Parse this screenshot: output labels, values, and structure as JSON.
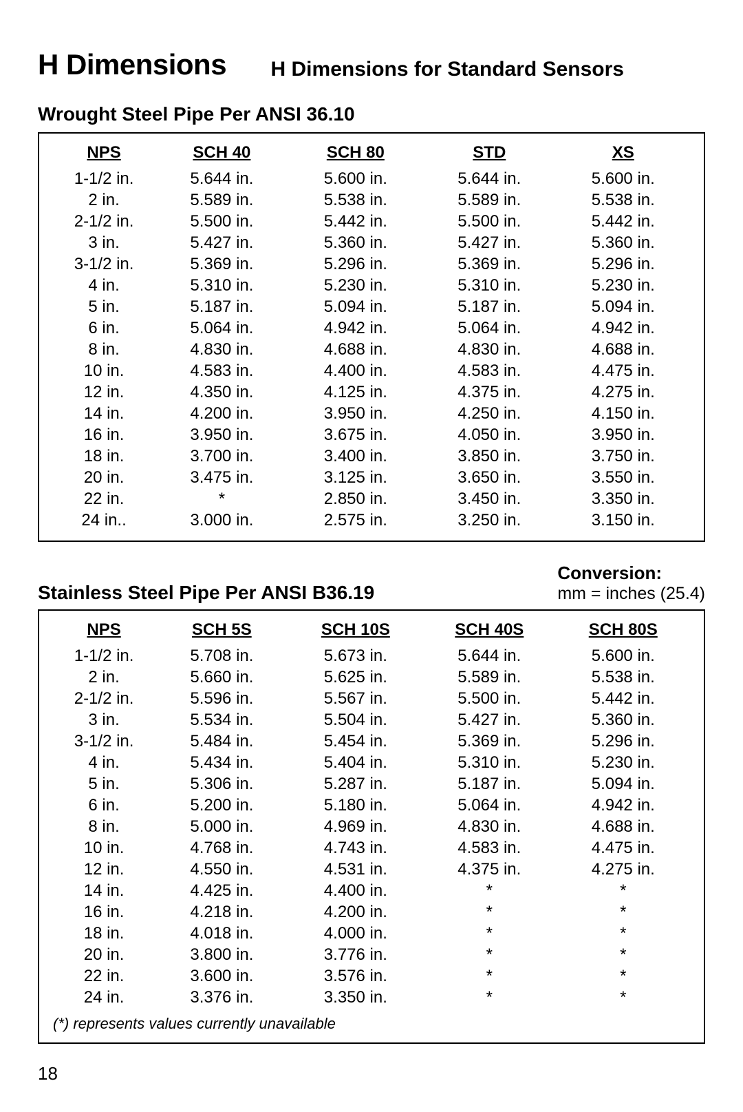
{
  "header": {
    "title_main": "H Dimensions",
    "title_sub": "H Dimensions for Standard Sensors"
  },
  "table1": {
    "section_title": "Wrought Steel Pipe Per ANSI 36.10",
    "columns": [
      "NPS",
      "SCH 40",
      "SCH 80",
      "STD",
      "XS"
    ],
    "rows": [
      [
        "1-1/2 in.",
        "5.644 in.",
        "5.600 in.",
        "5.644 in.",
        "5.600 in."
      ],
      [
        "2 in.",
        "5.589 in.",
        "5.538 in.",
        "5.589 in.",
        "5.538 in."
      ],
      [
        "2-1/2 in.",
        "5.500 in.",
        "5.442 in.",
        "5.500 in.",
        "5.442 in."
      ],
      [
        "3 in.",
        "5.427 in.",
        "5.360 in.",
        "5.427 in.",
        "5.360 in."
      ],
      [
        "3-1/2 in.",
        "5.369 in.",
        "5.296 in.",
        "5.369 in.",
        "5.296 in."
      ],
      [
        "4 in.",
        "5.310 in.",
        "5.230 in.",
        "5.310 in.",
        "5.230 in."
      ],
      [
        "5 in.",
        "5.187 in.",
        "5.094 in.",
        "5.187 in.",
        "5.094 in."
      ],
      [
        "6 in.",
        "5.064 in.",
        "4.942 in.",
        "5.064 in.",
        "4.942 in."
      ],
      [
        "8 in.",
        "4.830 in.",
        "4.688 in.",
        "4.830 in.",
        "4.688 in."
      ],
      [
        "10 in.",
        "4.583 in.",
        "4.400 in.",
        "4.583 in.",
        "4.475 in."
      ],
      [
        "12 in.",
        "4.350 in.",
        "4.125 in.",
        "4.375 in.",
        "4.275 in."
      ],
      [
        "14 in.",
        "4.200 in.",
        "3.950 in.",
        "4.250 in.",
        "4.150 in."
      ],
      [
        "16 in.",
        "3.950 in.",
        "3.675 in.",
        "4.050 in.",
        "3.950 in."
      ],
      [
        "18 in.",
        "3.700 in.",
        "3.400 in.",
        "3.850 in.",
        "3.750 in."
      ],
      [
        "20 in.",
        "3.475 in.",
        "3.125 in.",
        "3.650 in.",
        "3.550 in."
      ],
      [
        "22 in.",
        "*",
        "2.850 in.",
        "3.450 in.",
        "3.350 in."
      ],
      [
        "24 in..",
        "3.000 in.",
        "2.575 in.",
        "3.250 in.",
        "3.150 in."
      ]
    ]
  },
  "conversion": {
    "label": "Conversion:",
    "text": "mm = inches (25.4)"
  },
  "table2": {
    "section_title": "Stainless Steel Pipe Per ANSI B36.19",
    "columns": [
      "NPS",
      "SCH 5S",
      "SCH 10S",
      "SCH 40S",
      "SCH 80S"
    ],
    "rows": [
      [
        "1-1/2 in.",
        "5.708 in.",
        "5.673 in.",
        "5.644 in.",
        "5.600 in."
      ],
      [
        "2 in.",
        "5.660 in.",
        "5.625 in.",
        "5.589 in.",
        "5.538 in."
      ],
      [
        "2-1/2 in.",
        "5.596 in.",
        "5.567 in.",
        "5.500 in.",
        "5.442 in."
      ],
      [
        "3 in.",
        "5.534 in.",
        "5.504 in.",
        "5.427 in.",
        "5.360 in."
      ],
      [
        "3-1/2 in.",
        "5.484 in.",
        "5.454 in.",
        "5.369 in.",
        "5.296 in."
      ],
      [
        "4 in.",
        "5.434 in.",
        "5.404 in.",
        "5.310 in.",
        "5.230 in."
      ],
      [
        "5 in.",
        "5.306 in.",
        "5.287 in.",
        "5.187 in.",
        "5.094 in."
      ],
      [
        "6 in.",
        "5.200 in.",
        "5.180 in.",
        "5.064 in.",
        "4.942 in."
      ],
      [
        "8 in.",
        "5.000 in.",
        "4.969 in.",
        "4.830 in.",
        "4.688 in."
      ],
      [
        "10 in.",
        "4.768 in.",
        "4.743 in.",
        "4.583 in.",
        "4.475 in."
      ],
      [
        "12 in.",
        "4.550 in.",
        "4.531 in.",
        "4.375 in.",
        "4.275 in."
      ],
      [
        "14 in.",
        "4.425 in.",
        "4.400 in.",
        "*",
        "*"
      ],
      [
        "16 in.",
        "4.218 in.",
        "4.200 in.",
        "*",
        "*"
      ],
      [
        "18 in.",
        "4.018 in.",
        "4.000 in.",
        "*",
        "*"
      ],
      [
        "20 in.",
        "3.800 in.",
        "3.776 in.",
        "*",
        "*"
      ],
      [
        "22 in.",
        "3.600 in.",
        "3.576 in.",
        "*",
        "*"
      ],
      [
        "24 in.",
        "3.376 in.",
        "3.350 in.",
        "*",
        "*"
      ]
    ],
    "footnote": "(*) represents values currently unavailable"
  },
  "page_number": "18"
}
